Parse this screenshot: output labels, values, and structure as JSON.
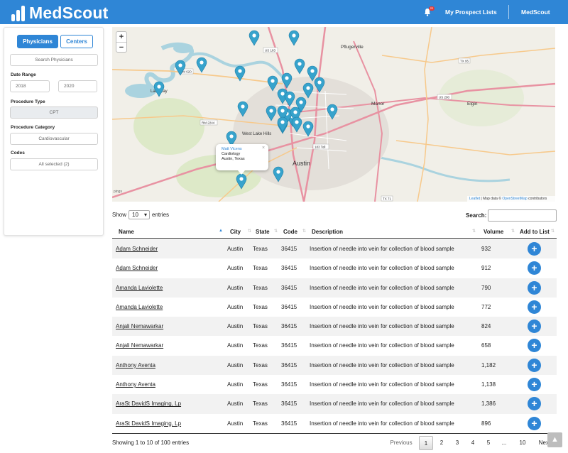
{
  "app": {
    "name": "MedScout"
  },
  "header": {
    "notification_count": "22",
    "prospect_lists_label": "My Prospect Lists",
    "account_label": "MedScout"
  },
  "sidebar": {
    "physicians_label": "Physicians",
    "centers_label": "Centers",
    "search_placeholder": "Search Physicians",
    "date_range_label": "Date Range",
    "date_from": "2018",
    "date_to": "2020",
    "procedure_type_label": "Procedure Type",
    "procedure_type_value": "CPT",
    "procedure_category_label": "Procedure Category",
    "procedure_category_value": "Cardiovascular",
    "codes_label": "Codes",
    "codes_value": "All selected (2)"
  },
  "map": {
    "zoom_in": "+",
    "zoom_out": "−",
    "labels": [
      "Pflugerville",
      "Austin",
      "Manor",
      "Elgin",
      "Lakeway",
      "West Lake Hills"
    ],
    "road_labels": [
      "US 183",
      "RM 620",
      "TX 95",
      "US 290",
      "RM 2244",
      "183 Toll",
      "TX 71"
    ],
    "popup": {
      "name": "Matt Vicens",
      "specialty": "Cardiology",
      "location": "Austin, Texas",
      "close": "×"
    },
    "attribution_leaflet": "Leaflet",
    "attribution_text": " | Map data © ",
    "attribution_osm": "OpenStreetMap",
    "attribution_suffix": " contributors",
    "corner_label": "pings"
  },
  "table": {
    "show_label": "Show",
    "entries_label": "entries",
    "page_size": "10",
    "search_label": "Search:",
    "columns": [
      "Name",
      "City",
      "State",
      "Code",
      "Description",
      "Volume",
      "Add to List"
    ],
    "rows": [
      {
        "name": "Adam Schneider",
        "city": "Austin",
        "state": "Texas",
        "code": "36415",
        "description": "Insertion of needle into vein for collection of blood sample",
        "volume": "932"
      },
      {
        "name": "Adam Schneider",
        "city": "Austin",
        "state": "Texas",
        "code": "36415",
        "description": "Insertion of needle into vein for collection of blood sample",
        "volume": "912"
      },
      {
        "name": "Amanda Laviolette",
        "city": "Austin",
        "state": "Texas",
        "code": "36415",
        "description": "Insertion of needle into vein for collection of blood sample",
        "volume": "790"
      },
      {
        "name": "Amanda Laviolette",
        "city": "Austin",
        "state": "Texas",
        "code": "36415",
        "description": "Insertion of needle into vein for collection of blood sample",
        "volume": "772"
      },
      {
        "name": "Anjali Nemawarkar",
        "city": "Austin",
        "state": "Texas",
        "code": "36415",
        "description": "Insertion of needle into vein for collection of blood sample",
        "volume": "824"
      },
      {
        "name": "Anjali Nemawarkar",
        "city": "Austin",
        "state": "Texas",
        "code": "36415",
        "description": "Insertion of needle into vein for collection of blood sample",
        "volume": "658"
      },
      {
        "name": "Anthony Aventa",
        "city": "Austin",
        "state": "Texas",
        "code": "36415",
        "description": "Insertion of needle into vein for collection of blood sample",
        "volume": "1,182"
      },
      {
        "name": "Anthony Aventa",
        "city": "Austin",
        "state": "Texas",
        "code": "36415",
        "description": "Insertion of needle into vein for collection of blood sample",
        "volume": "1,138"
      },
      {
        "name": "AraSt DavidS Imaging, Lp",
        "city": "Austin",
        "state": "Texas",
        "code": "36415",
        "description": "Insertion of needle into vein for collection of blood sample",
        "volume": "1,386"
      },
      {
        "name": "AraSt DavidS Imaging, Lp",
        "city": "Austin",
        "state": "Texas",
        "code": "36415",
        "description": "Insertion of needle into vein for collection of blood sample",
        "volume": "896"
      }
    ],
    "add_symbol": "+",
    "info": "Showing 1 to 10 of 100 entries",
    "pagination": [
      "Previous",
      "1",
      "2",
      "3",
      "4",
      "5",
      "...",
      "10",
      "Next"
    ]
  },
  "colors": {
    "brand": "#2f86d6",
    "road_major": "#e892a2",
    "road_secondary": "#f7c98b",
    "water": "#aad3df",
    "marker": "#37a3cc"
  }
}
